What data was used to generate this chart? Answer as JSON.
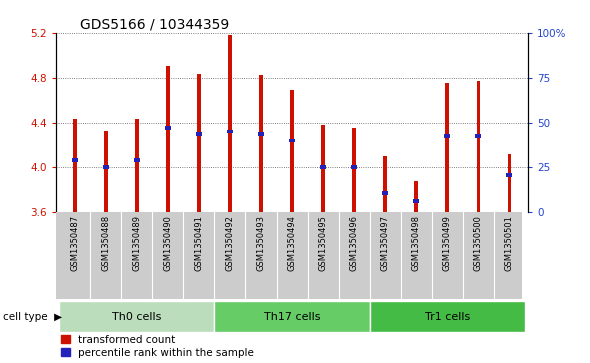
{
  "title": "GDS5166 / 10344359",
  "samples": [
    "GSM1350487",
    "GSM1350488",
    "GSM1350489",
    "GSM1350490",
    "GSM1350491",
    "GSM1350492",
    "GSM1350493",
    "GSM1350494",
    "GSM1350495",
    "GSM1350496",
    "GSM1350497",
    "GSM1350498",
    "GSM1350499",
    "GSM1350500",
    "GSM1350501"
  ],
  "bar_values": [
    4.43,
    4.32,
    4.43,
    4.9,
    4.83,
    5.18,
    4.82,
    4.69,
    4.38,
    4.35,
    4.1,
    3.88,
    4.75,
    4.77,
    4.12
  ],
  "percentile_values": [
    4.07,
    4.0,
    4.07,
    4.35,
    4.3,
    4.32,
    4.3,
    4.24,
    4.0,
    4.0,
    3.77,
    3.7,
    4.28,
    4.28,
    3.93
  ],
  "ymin": 3.6,
  "ymax": 5.2,
  "yticks": [
    3.6,
    4.0,
    4.4,
    4.8,
    5.2
  ],
  "y2ticks": [
    0,
    25,
    50,
    75,
    100
  ],
  "bar_color": "#CC1100",
  "percentile_color": "#2222BB",
  "cell_groups": [
    {
      "label": "Th0 cells",
      "start": 0,
      "end": 4,
      "color": "#BBDDBB"
    },
    {
      "label": "Th17 cells",
      "start": 5,
      "end": 9,
      "color": "#66CC66"
    },
    {
      "label": "Tr1 cells",
      "start": 10,
      "end": 14,
      "color": "#44BB44"
    }
  ],
  "bar_width": 0.12,
  "sample_box_color": "#CCCCCC",
  "plot_bg": "#FFFFFF",
  "left_tick_color": "#CC1100",
  "right_tick_color": "#2244CC",
  "title_fontsize": 10,
  "tick_fontsize": 7.5,
  "sample_fontsize": 6,
  "legend_fontsize": 7.5,
  "cell_label_fontsize": 8
}
